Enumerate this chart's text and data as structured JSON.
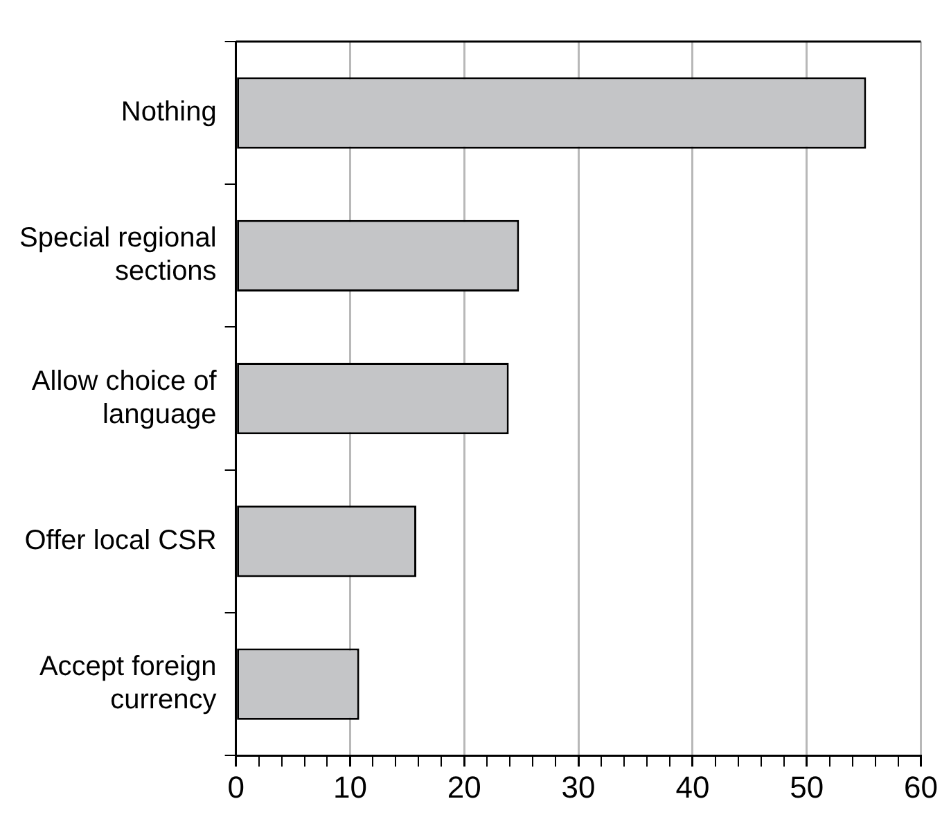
{
  "chart_data": {
    "type": "bar",
    "orientation": "horizontal",
    "categories": [
      "Nothing",
      "Special regional sections",
      "Allow choice of language",
      "Offer local CSR",
      "Accept foreign currency"
    ],
    "values": [
      55.2,
      24.8,
      23.9,
      15.8,
      10.8
    ],
    "color": "#c4c5c7",
    "xlim": [
      0,
      60
    ],
    "xticks": [
      0,
      {
        "value": 2,
        "label": null
      },
      {
        "value": 4,
        "label": null
      },
      {
        "value": 6,
        "label": null
      },
      {
        "value": 8,
        "label": null
      },
      10,
      {
        "value": 12,
        "label": null
      },
      {
        "value": 14,
        "label": null
      },
      {
        "value": 16,
        "label": null
      },
      {
        "value": 18,
        "label": null
      },
      20,
      {
        "value": 22,
        "label": null
      },
      {
        "value": 24,
        "label": null
      },
      {
        "value": 26,
        "label": null
      },
      {
        "value": 28,
        "label": null
      },
      30,
      {
        "value": 32,
        "label": null
      },
      {
        "value": 34,
        "label": null
      },
      {
        "value": 36,
        "label": null
      },
      {
        "value": 38,
        "label": null
      },
      40,
      {
        "value": 42,
        "label": null
      },
      {
        "value": 44,
        "label": null
      },
      {
        "value": 46,
        "label": null
      },
      {
        "value": 48,
        "label": null
      },
      50,
      {
        "value": 52,
        "label": null
      },
      {
        "value": 54,
        "label": null
      },
      {
        "value": 56,
        "label": null
      },
      {
        "value": 58,
        "label": null
      },
      60
    ],
    "grid": "x",
    "legend": false
  }
}
